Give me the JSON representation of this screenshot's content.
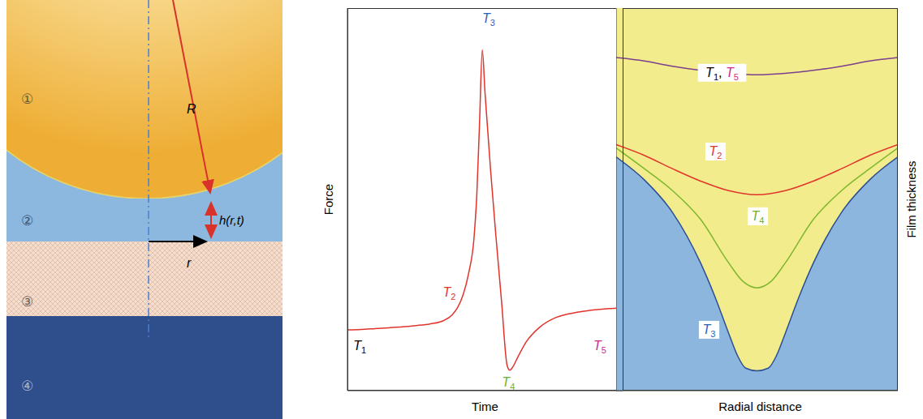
{
  "diagram": {
    "regions": [
      "①",
      "②",
      "③",
      "④"
    ],
    "sphere_radius": "R",
    "film_thickness": "h(r,t)",
    "radial_coordinate": "r"
  },
  "chart_data": [
    {
      "type": "line",
      "x_label": "Time",
      "y_label": "Force",
      "xlim": [
        0,
        100
      ],
      "ylim": [
        0,
        9
      ],
      "xticks": [
        0,
        25,
        50,
        75,
        100
      ],
      "yticks": [
        0,
        1,
        2,
        3,
        4,
        5,
        6,
        7,
        8,
        9
      ],
      "tick_labels": false,
      "grid": false,
      "x": [
        0,
        5,
        10,
        15,
        20,
        25,
        30,
        35,
        38,
        40,
        42,
        44,
        46,
        47,
        48,
        49,
        50,
        51,
        52,
        54,
        56,
        58,
        59,
        60,
        62,
        65,
        70,
        75,
        80,
        85,
        90,
        95,
        100
      ],
      "series": [
        {
          "color": "#e0342c",
          "values": [
            1.43,
            1.44,
            1.46,
            1.48,
            1.5,
            1.53,
            1.57,
            1.65,
            1.78,
            1.95,
            2.25,
            2.75,
            3.6,
            4.6,
            6.3,
            8.02,
            7.0,
            6.1,
            5.2,
            3.6,
            2.1,
            0.6,
            0.48,
            0.55,
            0.8,
            1.15,
            1.5,
            1.7,
            1.8,
            1.86,
            1.9,
            1.93,
            1.95
          ]
        }
      ],
      "annotations": [
        {
          "text": "T1",
          "color": "#000000",
          "x": 4.5,
          "y": 1.05
        },
        {
          "text": "T2",
          "color": "#e0342c",
          "x": 37,
          "y": 2.3
        },
        {
          "text": "T3",
          "color": "#2c5fb8",
          "x": 51.3,
          "y": 8.75
        },
        {
          "text": "T4",
          "color": "#6fb02a",
          "x": 58.5,
          "y": 0.2
        },
        {
          "text": "T5",
          "color": "#cc2a8c",
          "x": 91.7,
          "y": 1.05
        }
      ]
    },
    {
      "type": "line",
      "x_label": "Radial distance",
      "y_label": "Film thickness",
      "log": "y",
      "xlim": [
        0,
        100
      ],
      "ylim": [
        1,
        1000
      ],
      "xticks": [
        0,
        10,
        20,
        30,
        40,
        50,
        60,
        70,
        80,
        90,
        100
      ],
      "yticks": [
        1,
        10,
        100,
        1000
      ],
      "tick_labels": false,
      "grid": false,
      "series": [
        {
          "type": "area",
          "color": "#2c4f94",
          "x": [
            0,
            10,
            20,
            30,
            35,
            40,
            43,
            46,
            50,
            54,
            57,
            60,
            65,
            70,
            80,
            90,
            100
          ],
          "values": [
            68,
            45,
            25,
            10,
            5.5,
            2.8,
            1.9,
            1.5,
            1.43,
            1.5,
            1.9,
            2.8,
            5.5,
            10,
            25,
            45,
            68
          ]
        },
        {
          "type": "line",
          "color": "#7cb82f",
          "x": [
            0,
            10,
            20,
            30,
            40,
            45,
            50,
            55,
            60,
            70,
            80,
            90,
            100
          ],
          "values": [
            80,
            55,
            37,
            22,
            10,
            7.2,
            6.4,
            7.2,
            10,
            22,
            37,
            55,
            80
          ]
        },
        {
          "type": "line",
          "color": "#e0342c",
          "x": [
            0,
            10,
            20,
            30,
            40,
            50,
            60,
            70,
            80,
            90,
            100
          ],
          "values": [
            85,
            70,
            55,
            44,
            37,
            34.4,
            37,
            44,
            55,
            70,
            85
          ]
        },
        {
          "type": "line",
          "color": "#7a3f8e",
          "x": [
            0,
            10,
            20,
            30,
            40,
            50,
            60,
            70,
            80,
            90,
            100
          ],
          "values": [
            410,
            385,
            350,
            325,
            308,
            300,
            308,
            325,
            350,
            385,
            410
          ]
        }
      ],
      "annotations": [
        {
          "parts": [
            {
              "text": "T1",
              "color": "#000000"
            },
            {
              "text": ", ",
              "color": "#000000"
            },
            {
              "text": "T5",
              "color": "#cc2a8c"
            }
          ],
          "x": 37.6,
          "y": 311
        },
        {
          "text": "T2",
          "color": "#e0342c",
          "x": 35.3,
          "y": 75
        },
        {
          "text": "T4",
          "color": "#6fb02a",
          "x": 50.3,
          "y": 23.3
        },
        {
          "text": "T3",
          "color": "#2c5fb8",
          "x": 33,
          "y": 3
        }
      ]
    }
  ]
}
